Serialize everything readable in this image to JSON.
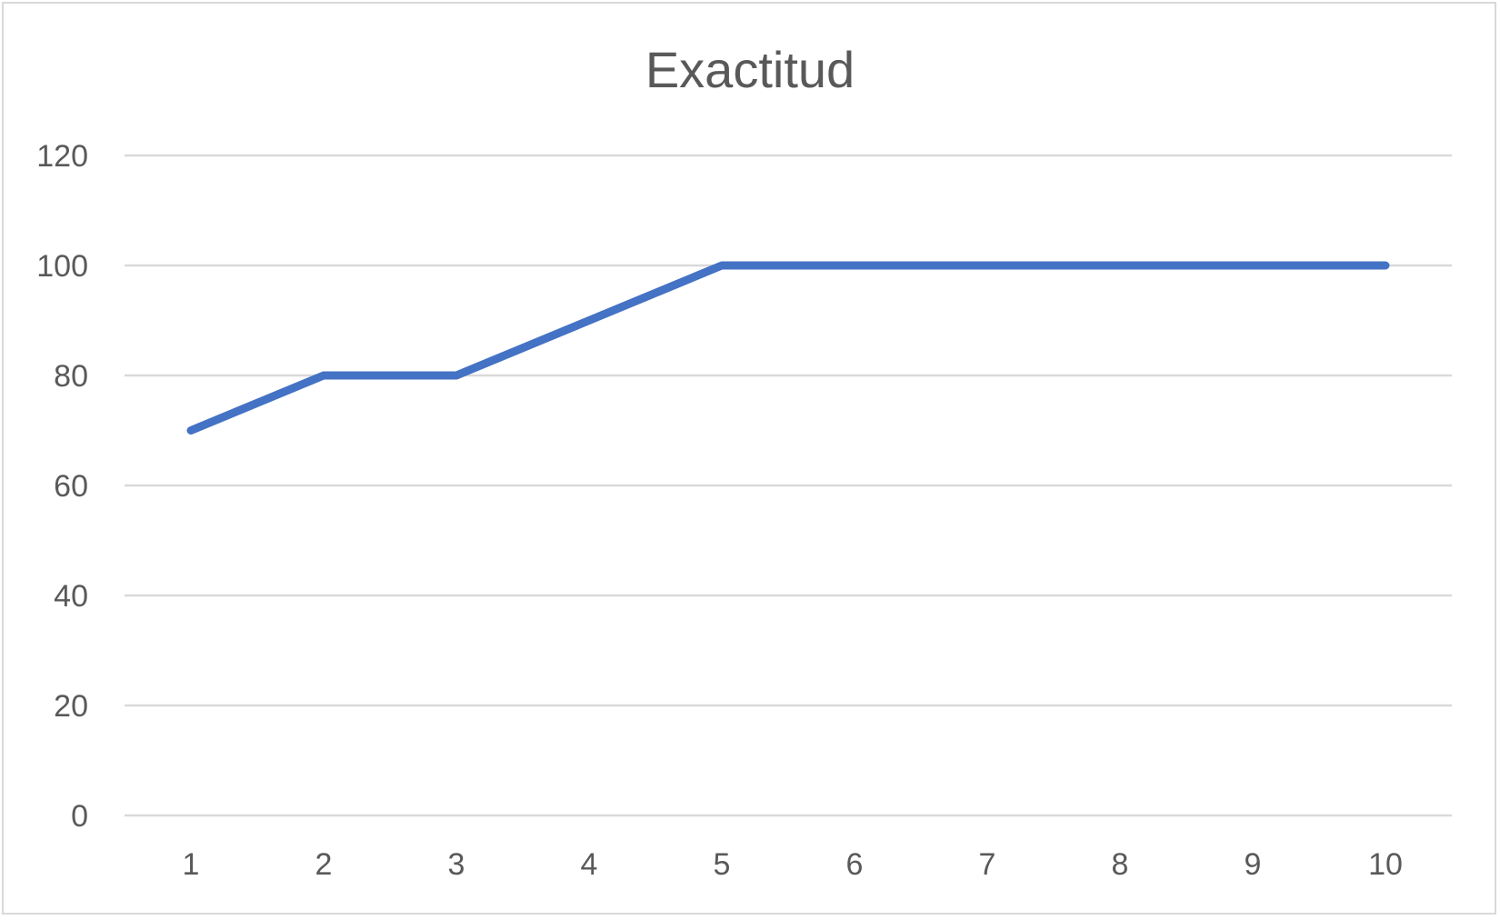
{
  "chart_data": {
    "type": "line",
    "title": "Exactitud",
    "xlabel": "",
    "ylabel": "",
    "categories": [
      "1",
      "2",
      "3",
      "4",
      "5",
      "6",
      "7",
      "8",
      "9",
      "10"
    ],
    "series": [
      {
        "values": [
          70,
          80,
          80,
          90,
          100,
          100,
          100,
          100,
          100,
          100
        ],
        "color": "#4472C4"
      }
    ],
    "ylim": [
      0,
      120
    ],
    "yticks": [
      "0",
      "20",
      "40",
      "60",
      "80",
      "100",
      "120"
    ],
    "grid": true,
    "legend": "none"
  }
}
